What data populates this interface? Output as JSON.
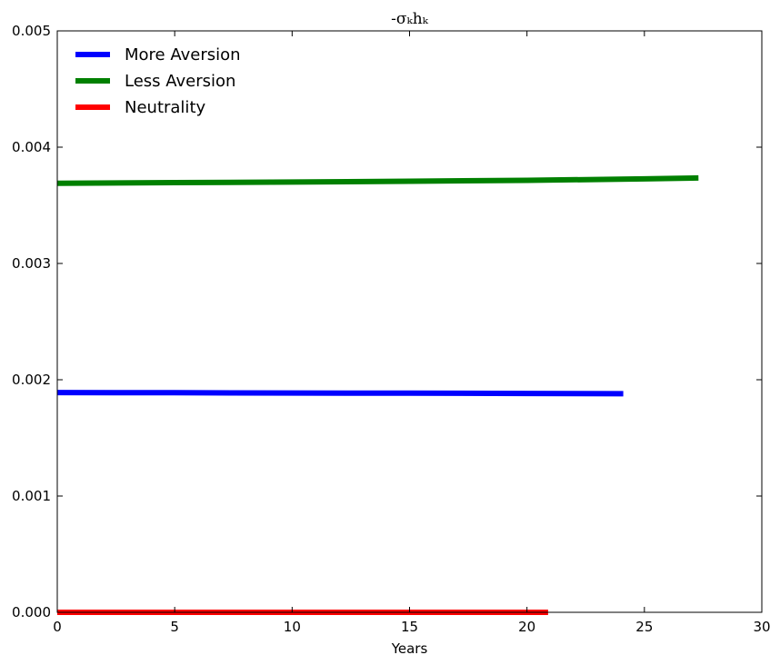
{
  "chart_data": {
    "type": "line",
    "title": "-σₖhₖ",
    "xlabel": "Years",
    "ylabel": "",
    "xlim": [
      0,
      30
    ],
    "ylim": [
      0,
      0.005
    ],
    "xticks": [
      0,
      5,
      10,
      15,
      20,
      25,
      30
    ],
    "xtick_labels": [
      "0",
      "5",
      "10",
      "15",
      "20",
      "25",
      "30"
    ],
    "yticks": [
      0,
      0.001,
      0.002,
      0.003,
      0.004,
      0.005
    ],
    "ytick_labels": [
      "0.000",
      "0.001",
      "0.002",
      "0.003",
      "0.004",
      "0.005"
    ],
    "grid": false,
    "legend_position": "top-left",
    "series": [
      {
        "name": "More Aversion",
        "color": "#0000ff",
        "x": [
          0,
          5,
          10,
          15,
          20,
          24.1
        ],
        "y": [
          0.00189,
          0.001888,
          0.001886,
          0.001884,
          0.001882,
          0.00188
        ]
      },
      {
        "name": "Less Aversion",
        "color": "#008000",
        "x": [
          0,
          5,
          10,
          15,
          20,
          25,
          27.3
        ],
        "y": [
          0.00369,
          0.003695,
          0.0037,
          0.003707,
          0.003715,
          0.003727,
          0.003735
        ]
      },
      {
        "name": "Neutrality",
        "color": "#ff0000",
        "x": [
          0,
          5,
          10,
          15,
          20,
          20.9
        ],
        "y": [
          0.0,
          0.0,
          0.0,
          0.0,
          0.0,
          0.0
        ]
      }
    ]
  }
}
